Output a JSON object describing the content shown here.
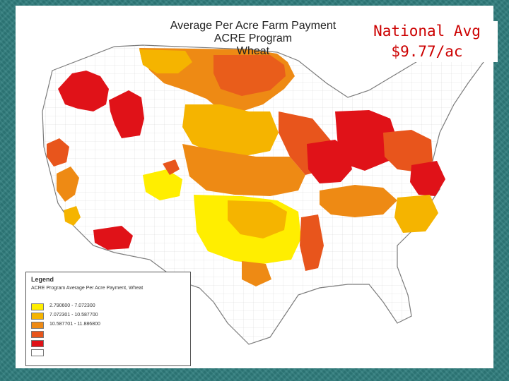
{
  "map": {
    "title_lines": [
      "Average Per Acre Farm Payment",
      "ACRE Program",
      "Wheat"
    ],
    "national_avg": {
      "line1": "National Avg",
      "line2": "$9.77/ac"
    }
  },
  "legend": {
    "title": "Legend",
    "subtitle": "ACRE Program Average Per Acre Payment, Wheat",
    "field": "",
    "classes": [
      {
        "label": "2.790600 - 7.072300",
        "color": "#ffee00"
      },
      {
        "label": "7.072301 - 10.587700",
        "color": "#f5b400"
      },
      {
        "label": "10.587701 - 11.886800",
        "color": "#ee8a14"
      },
      {
        "label": "",
        "color": "#e8551c"
      },
      {
        "label": "",
        "color": "#e01218"
      },
      {
        "label": "",
        "color": "#ffffff"
      }
    ]
  },
  "colors": {
    "c1": "#ffee00",
    "c2": "#f5b400",
    "c3": "#ee8a14",
    "c4": "#e8551c",
    "c5": "#e01218",
    "border": "#888888",
    "county_line": "#cfcfcf"
  }
}
